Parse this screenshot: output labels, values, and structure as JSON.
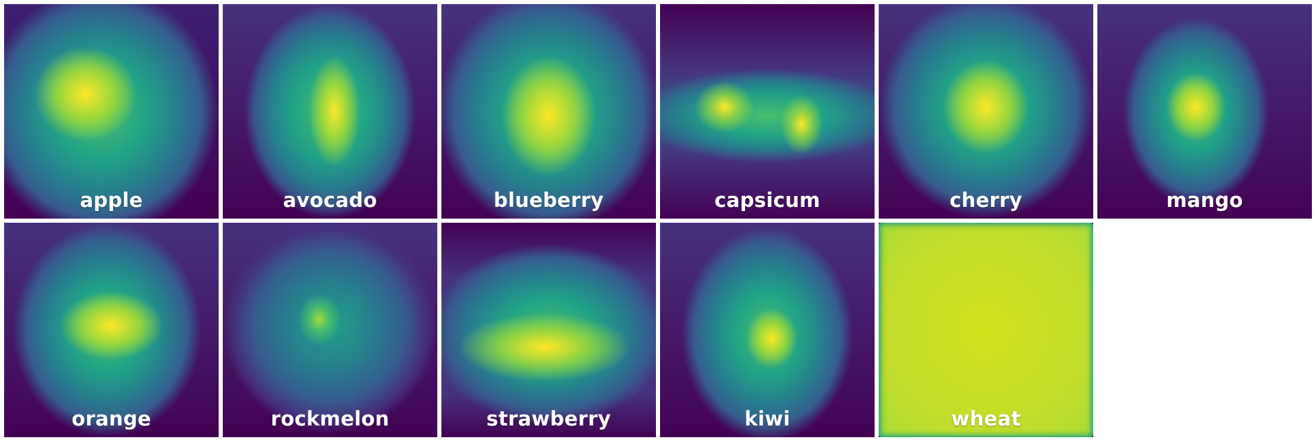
{
  "colormap": [
    "#440154",
    "#46327e",
    "#365c8d",
    "#277f8e",
    "#1fa187",
    "#4ac16d",
    "#a0da39",
    "#fde725"
  ],
  "tiles": [
    {
      "label": "apple",
      "pattern": "central-blob"
    },
    {
      "label": "avocado",
      "pattern": "central-blob"
    },
    {
      "label": "blueberry",
      "pattern": "central-blob"
    },
    {
      "label": "capsicum",
      "pattern": "horizontal-band"
    },
    {
      "label": "cherry",
      "pattern": "central-blob"
    },
    {
      "label": "mango",
      "pattern": "central-blob"
    },
    {
      "label": "orange",
      "pattern": "central-blob"
    },
    {
      "label": "rockmelon",
      "pattern": "patchy"
    },
    {
      "label": "strawberry",
      "pattern": "lower-band"
    },
    {
      "label": "kiwi",
      "pattern": "central-blob"
    },
    {
      "label": "wheat",
      "pattern": "uniform-high"
    }
  ]
}
